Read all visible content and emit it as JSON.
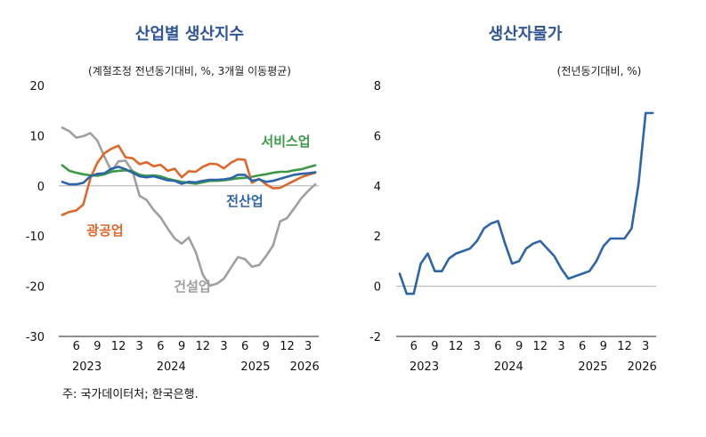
{
  "source": "주: 국가데이터처; 한국은행.",
  "chart_data": [
    {
      "type": "line",
      "title": "산업별 생산지수",
      "unit_note": "(계절조정 전년동기대비, %, 3개월 이동평균)",
      "ylim": [
        -30,
        20
      ],
      "yticks": [
        20,
        10,
        0,
        -10,
        -20,
        -30
      ],
      "x_tick_labels": [
        "6",
        "9",
        "12",
        "3",
        "6",
        "9",
        "12",
        "3",
        "6",
        "9",
        "12",
        "3"
      ],
      "x_tick_months": [
        6,
        9,
        12,
        15,
        18,
        21,
        24,
        27,
        30,
        33,
        36,
        39
      ],
      "x_years": [
        {
          "label": "2023",
          "month": 7.5
        },
        {
          "label": "2024",
          "month": 19.5
        },
        {
          "label": "2025",
          "month": 31.5
        },
        {
          "label": "2026",
          "month": 38.5
        }
      ],
      "x_range": [
        3.5,
        40.5
      ],
      "zero_line": true,
      "series": [
        {
          "name": "서비스업",
          "color": "#3c9a47",
          "x": [
            4,
            5,
            6,
            7,
            8,
            9,
            10,
            11,
            12,
            13,
            14,
            15,
            16,
            17,
            18,
            19,
            20,
            21,
            22,
            23,
            24,
            25,
            26,
            27,
            28,
            29,
            30,
            31,
            32,
            33,
            34,
            35,
            36,
            37,
            38,
            39,
            40
          ],
          "values": [
            4.1,
            3.0,
            2.6,
            2.3,
            2.1,
            2.0,
            2.3,
            2.8,
            3.0,
            3.1,
            2.9,
            2.2,
            2.0,
            2.1,
            1.9,
            1.4,
            1.1,
            0.8,
            0.6,
            0.4,
            0.7,
            1.0,
            1.0,
            1.1,
            1.3,
            1.5,
            1.6,
            1.8,
            2.1,
            2.3,
            2.6,
            2.8,
            2.8,
            3.1,
            3.3,
            3.7,
            4.1
          ]
        },
        {
          "name": "광공업",
          "color": "#e0672b",
          "x": [
            4,
            5,
            6,
            7,
            8,
            9,
            10,
            11,
            12,
            13,
            14,
            15,
            16,
            17,
            18,
            19,
            20,
            21,
            22,
            23,
            24,
            25,
            26,
            27,
            28,
            29,
            30,
            31,
            32,
            33,
            34,
            35,
            36,
            37,
            38,
            39,
            40
          ],
          "values": [
            -5.8,
            -5.2,
            -4.9,
            -3.7,
            1.5,
            4.6,
            6.5,
            7.4,
            8.0,
            5.7,
            5.5,
            4.3,
            4.7,
            3.9,
            4.2,
            3.0,
            3.4,
            1.7,
            2.9,
            2.8,
            3.8,
            4.4,
            4.3,
            3.5,
            4.6,
            5.3,
            5.2,
            0.6,
            1.4,
            0.3,
            -0.5,
            -0.4,
            0.3,
            1.0,
            1.7,
            2.2,
            2.6
          ]
        },
        {
          "name": "전산업",
          "color": "#2e64a8",
          "x": [
            4,
            5,
            6,
            7,
            8,
            9,
            10,
            11,
            12,
            13,
            14,
            15,
            16,
            17,
            18,
            19,
            20,
            21,
            22,
            23,
            24,
            25,
            26,
            27,
            28,
            29,
            30,
            31,
            32,
            33,
            34,
            35,
            36,
            37,
            38,
            39,
            40
          ],
          "values": [
            0.8,
            0.3,
            0.3,
            0.6,
            1.9,
            2.4,
            2.5,
            3.4,
            3.8,
            3.3,
            2.6,
            1.9,
            1.7,
            1.9,
            1.5,
            1.1,
            1.0,
            0.4,
            0.8,
            0.7,
            1.0,
            1.2,
            1.2,
            1.3,
            1.5,
            2.2,
            2.2,
            1.0,
            1.3,
            0.8,
            1.0,
            1.4,
            1.8,
            2.2,
            2.4,
            2.5,
            2.7
          ]
        },
        {
          "name": "건설업",
          "color": "#a0a0a0",
          "x": [
            4,
            5,
            6,
            7,
            8,
            9,
            10,
            11,
            12,
            13,
            14,
            15,
            16,
            17,
            18,
            19,
            20,
            21,
            22,
            23,
            24,
            25,
            26,
            27,
            28,
            29,
            30,
            31,
            32,
            33,
            34,
            35,
            36,
            37,
            38,
            39,
            40
          ],
          "values": [
            11.6,
            10.9,
            9.6,
            9.9,
            10.5,
            9.0,
            5.8,
            2.9,
            4.9,
            5.0,
            2.9,
            -2.0,
            -2.8,
            -4.8,
            -6.3,
            -8.5,
            -10.5,
            -11.5,
            -10.3,
            -13.2,
            -17.7,
            -19.9,
            -19.5,
            -18.5,
            -16.3,
            -14.2,
            -14.6,
            -16.1,
            -15.8,
            -14.0,
            -11.9,
            -7.1,
            -6.4,
            -4.5,
            -2.5,
            -1.0,
            0.3
          ]
        }
      ]
    },
    {
      "type": "line",
      "title": "생산자물가",
      "unit_note": "(전년동기대비, %)",
      "ylim": [
        -2,
        8
      ],
      "yticks": [
        8,
        6,
        4,
        2,
        0,
        -2
      ],
      "x_tick_labels": [
        "6",
        "9",
        "12",
        "3",
        "6",
        "9",
        "12",
        "3",
        "6",
        "9",
        "12",
        "3"
      ],
      "x_tick_months": [
        6,
        9,
        12,
        15,
        18,
        21,
        24,
        27,
        30,
        33,
        36,
        39
      ],
      "x_years": [
        {
          "label": "2023",
          "month": 7.5
        },
        {
          "label": "2024",
          "month": 19.5
        },
        {
          "label": "2025",
          "month": 31.5
        },
        {
          "label": "2026",
          "month": 38.5
        }
      ],
      "x_range": [
        3.5,
        40.5
      ],
      "zero_line": true,
      "series": [
        {
          "color": "#2e64a8",
          "x": [
            4,
            5,
            6,
            7,
            8,
            9,
            10,
            11,
            12,
            13,
            14,
            15,
            16,
            17,
            18,
            19,
            20,
            21,
            22,
            23,
            24,
            25,
            26,
            27,
            28,
            29,
            30,
            31,
            32,
            33,
            34,
            35,
            36,
            37,
            38,
            39,
            40
          ],
          "values": [
            0.5,
            -0.3,
            -0.3,
            0.9,
            1.3,
            0.6,
            0.6,
            1.1,
            1.3,
            1.4,
            1.5,
            1.8,
            2.3,
            2.5,
            2.6,
            1.7,
            0.9,
            1.0,
            1.5,
            1.7,
            1.8,
            1.5,
            1.2,
            0.7,
            0.3,
            0.4,
            0.5,
            0.6,
            1.0,
            1.6,
            1.9,
            1.9,
            1.9,
            2.3,
            4.1,
            6.9,
            6.9
          ]
        }
      ]
    }
  ],
  "labels": {
    "services": "서비스업",
    "mining": "광공업",
    "all": "전산업",
    "construction": "건설업"
  }
}
